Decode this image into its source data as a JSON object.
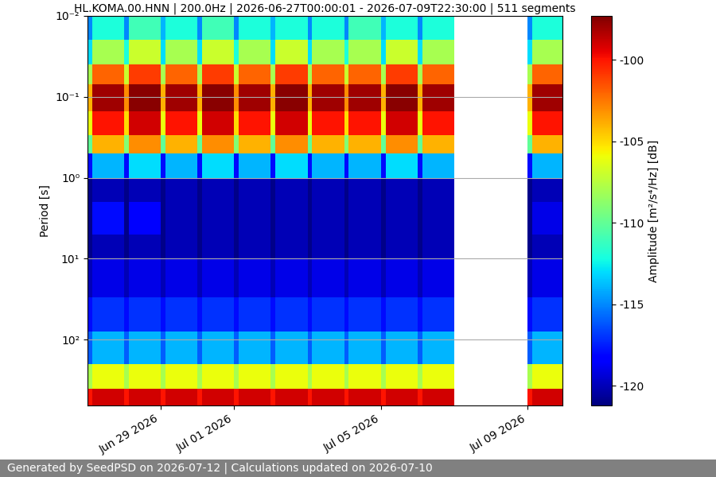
{
  "chart_data": {
    "type": "heatmap",
    "title": "HL.KOMA.00.HNN | 200.0Hz | 2026-06-27T00:00:01 - 2026-07-09T22:30:00 | 511 segments",
    "y_label": "Period [s]",
    "footer": "Generated by SeedPSD on 2026-07-12 | Calculations updated on 2026-07-10",
    "color": "jet",
    "log": "y",
    "grid": "y",
    "xlim": [
      "2026-06-27T00:00:01",
      "2026-07-09T22:30:00"
    ],
    "xticks": [
      {
        "value": "2026-06-29T00:00:00",
        "label": "Jun 29 2026"
      },
      {
        "value": "2026-07-01T00:00:00",
        "label": "Jul 01 2026"
      },
      {
        "value": "2026-07-05T00:00:00",
        "label": "Jul 05 2026"
      },
      {
        "value": "2026-07-09T00:00:00",
        "label": "Jul 09 2026"
      }
    ],
    "ylim": [
      650,
      0.01
    ],
    "yticks": [
      {
        "value": 0.01,
        "label": "10⁻²"
      },
      {
        "value": 0.1,
        "label": "10⁻¹"
      },
      {
        "value": 1,
        "label": "10⁰"
      },
      {
        "value": 10,
        "label": "10¹"
      },
      {
        "value": 100,
        "label": "10²"
      }
    ],
    "x_edges": [
      "2026-06-27T00:00:00",
      "2026-06-27T03:00:00",
      "2026-06-28T00:00:00",
      "2026-06-28T03:00:00",
      "2026-06-29T00:00:00",
      "2026-06-29T03:00:00",
      "2026-06-30T00:00:00",
      "2026-06-30T03:00:00",
      "2026-07-01T00:00:00",
      "2026-07-01T03:00:00",
      "2026-07-02T00:00:00",
      "2026-07-02T03:00:00",
      "2026-07-03T00:00:00",
      "2026-07-03T03:00:00",
      "2026-07-04T00:00:00",
      "2026-07-04T03:00:00",
      "2026-07-05T00:00:00",
      "2026-07-05T03:00:00",
      "2026-07-06T00:00:00",
      "2026-07-06T03:00:00",
      "2026-07-07T00:00:00",
      "2026-07-09T00:00:00",
      "2026-07-09T03:00:00",
      "2026-07-09T22:30:00"
    ],
    "y_edges": [
      0.01,
      0.02,
      0.04,
      0.07,
      0.15,
      0.3,
      0.5,
      1,
      2,
      5,
      10,
      30,
      80,
      200,
      400,
      650
    ],
    "cells": [
      [
        -115,
        -112,
        -115,
        -111,
        -114,
        -112,
        -115,
        -111,
        -115,
        -112,
        -114,
        -112,
        -115,
        -112,
        -115,
        -111,
        -114,
        -112,
        -115,
        -112,
        null,
        -115,
        -112
      ],
      [
        -113,
        -108,
        -112,
        -107,
        -113,
        -108,
        -113,
        -107,
        -112,
        -108,
        -113,
        -107,
        -113,
        -108,
        -112,
        -108,
        -113,
        -107,
        -113,
        -108,
        null,
        -113,
        -108
      ],
      [
        -108,
        -102,
        -107,
        -101,
        -108,
        -102,
        -108,
        -101,
        -107,
        -102,
        -108,
        -101,
        -108,
        -102,
        -107,
        -102,
        -108,
        -101,
        -108,
        -102,
        null,
        -108,
        -102
      ],
      [
        -104,
        -98,
        -103,
        -97.5,
        -104,
        -98,
        -104,
        -97.5,
        -103,
        -98,
        -104,
        -97.5,
        -104,
        -98,
        -103,
        -98,
        -104,
        -97.5,
        -104,
        -98,
        null,
        -104,
        -98
      ],
      [
        -106,
        -100,
        -105,
        -99,
        -106,
        -100,
        -106,
        -99,
        -105,
        -100,
        -106,
        -99,
        -106,
        -100,
        -105,
        -100,
        -106,
        -99,
        -106,
        -100,
        null,
        -106,
        -100
      ],
      [
        -110,
        -104,
        -109,
        -103,
        -110,
        -104,
        -110,
        -103,
        -109,
        -104,
        -110,
        -103,
        -110,
        -104,
        -109,
        -104,
        -110,
        -103,
        -110,
        -104,
        null,
        -110,
        -104
      ],
      [
        -118,
        -114,
        -118,
        -113,
        -118,
        -114,
        -118,
        -113,
        -118,
        -114,
        -118,
        -113,
        -118,
        -114,
        -118,
        -114,
        -118,
        -113,
        -118,
        -114,
        null,
        -118,
        -114
      ],
      [
        -121,
        -120,
        -121,
        -120,
        -121,
        -120,
        -121,
        -120,
        -121,
        -120,
        -121,
        -120,
        -121,
        -120,
        -121,
        -120,
        -121,
        -120,
        -121,
        -120,
        null,
        -121,
        -120
      ],
      [
        -121,
        -118,
        -121,
        -118.5,
        -121,
        -120,
        -121,
        -120,
        -121,
        -120,
        -121,
        -120,
        -121,
        -120,
        -121,
        -120,
        -121,
        -120,
        -121,
        -120,
        null,
        -121,
        -119
      ],
      [
        -121,
        -120,
        -121,
        -120,
        -121,
        -120,
        -121,
        -120,
        -121,
        -120,
        -121,
        -120,
        -121,
        -120,
        -121,
        -120,
        -121,
        -120,
        -121,
        -120,
        null,
        -121,
        -120
      ],
      [
        -120,
        -119,
        -120,
        -119,
        -120,
        -119,
        -120,
        -119,
        -120,
        -119,
        -120,
        -119,
        -120,
        -119,
        -120,
        -119,
        -120,
        -119,
        -120,
        -119,
        null,
        -120,
        -119
      ],
      [
        -118,
        -117,
        -118,
        -117,
        -118,
        -117,
        -118,
        -117,
        -118,
        -117,
        -118,
        -117,
        -118,
        -117,
        -118,
        -117,
        -118,
        -117,
        -118,
        -117,
        null,
        -118,
        -117
      ],
      [
        -116,
        -114,
        -116,
        -114,
        -116,
        -114,
        -116,
        -114,
        -116,
        -114,
        -116,
        -114,
        -116,
        -114,
        -116,
        -114,
        -116,
        -114,
        -116,
        -114,
        null,
        -116,
        -114
      ],
      [
        -108,
        -106,
        -108,
        -106,
        -108,
        -106,
        -108,
        -106,
        -108,
        -106,
        -108,
        -106,
        -108,
        -106,
        -108,
        -106,
        -108,
        -106,
        -108,
        -106,
        null,
        -108,
        -106
      ],
      [
        -100,
        -99,
        -100,
        -99,
        -100,
        -99,
        -100,
        -99,
        -100,
        -99,
        -100,
        -99,
        -100,
        -99,
        -100,
        -99,
        -100,
        -99,
        -100,
        -99,
        null,
        -100,
        -99
      ]
    ],
    "colorbar": {
      "label": "Amplitude [m²/s⁴/Hz] [dB]",
      "range": [
        -121.2,
        -97.3
      ],
      "ticks": [
        -120,
        -115,
        -110,
        -105,
        -100
      ]
    }
  }
}
